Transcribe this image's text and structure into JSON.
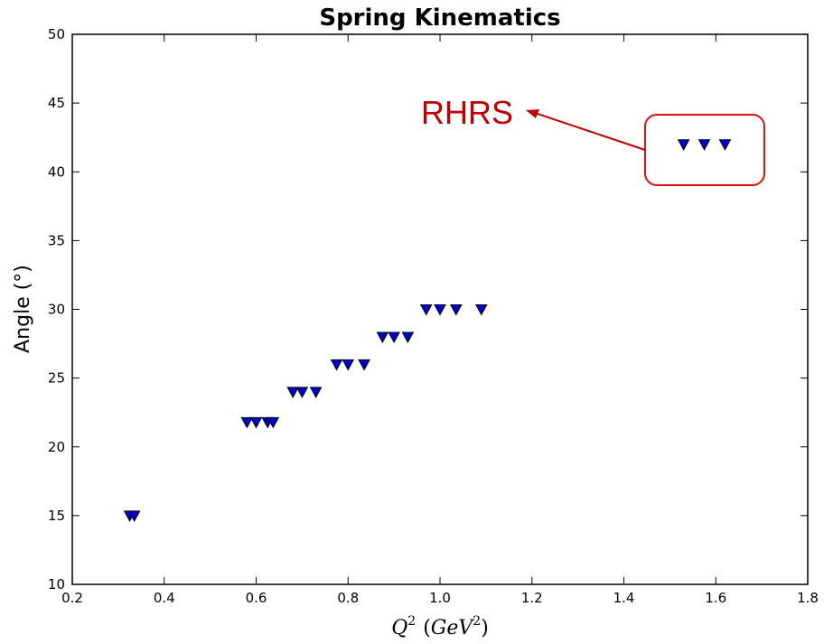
{
  "chart_data": {
    "type": "scatter",
    "title": "Spring Kinematics",
    "xlabel": {
      "base": "Q",
      "sup": "2",
      "open_paren": "(",
      "unit": "GeV",
      "unit_sup": "2",
      "close_paren": ")"
    },
    "ylabel": "Angle (°)",
    "xlim": [
      0.2,
      1.8
    ],
    "ylim": [
      10,
      50
    ],
    "xticks": [
      "0.2",
      "0.4",
      "0.6",
      "0.8",
      "1.0",
      "1.2",
      "1.4",
      "1.6",
      "1.8"
    ],
    "yticks": [
      "10",
      "15",
      "20",
      "25",
      "30",
      "35",
      "40",
      "45",
      "50"
    ],
    "grid": false,
    "marker": "triangle-down",
    "marker_color": "#0000cc",
    "marker_edge": "#000000",
    "points": [
      {
        "x": 0.325,
        "y": 15
      },
      {
        "x": 0.335,
        "y": 15
      },
      {
        "x": 0.58,
        "y": 21.8
      },
      {
        "x": 0.6,
        "y": 21.8
      },
      {
        "x": 0.625,
        "y": 21.8
      },
      {
        "x": 0.637,
        "y": 21.8
      },
      {
        "x": 0.68,
        "y": 24
      },
      {
        "x": 0.7,
        "y": 24
      },
      {
        "x": 0.73,
        "y": 24
      },
      {
        "x": 0.775,
        "y": 26
      },
      {
        "x": 0.8,
        "y": 26
      },
      {
        "x": 0.835,
        "y": 26
      },
      {
        "x": 0.875,
        "y": 28
      },
      {
        "x": 0.9,
        "y": 28
      },
      {
        "x": 0.93,
        "y": 28
      },
      {
        "x": 0.97,
        "y": 30
      },
      {
        "x": 1.0,
        "y": 30
      },
      {
        "x": 1.035,
        "y": 30
      },
      {
        "x": 1.09,
        "y": 30
      },
      {
        "x": 1.53,
        "y": 42
      },
      {
        "x": 1.575,
        "y": 42
      },
      {
        "x": 1.62,
        "y": 42
      }
    ],
    "annotation": {
      "text": "RHRS",
      "color": "#c00000"
    }
  }
}
